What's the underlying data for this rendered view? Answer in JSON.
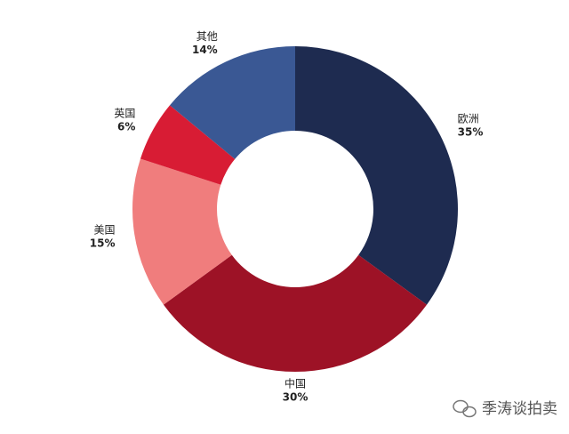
{
  "chart_data": {
    "type": "donut",
    "categories": [
      "欧洲",
      "中国",
      "美国",
      "英国",
      "其他"
    ],
    "values": [
      35,
      30,
      15,
      6,
      14
    ],
    "value_labels": [
      "35%",
      "30%",
      "15%",
      "6%",
      "14%"
    ],
    "colors": [
      "#1e2b50",
      "#9d1226",
      "#f07d7d",
      "#d81c34",
      "#3a5894"
    ],
    "watermark": "季涛谈拍卖"
  }
}
